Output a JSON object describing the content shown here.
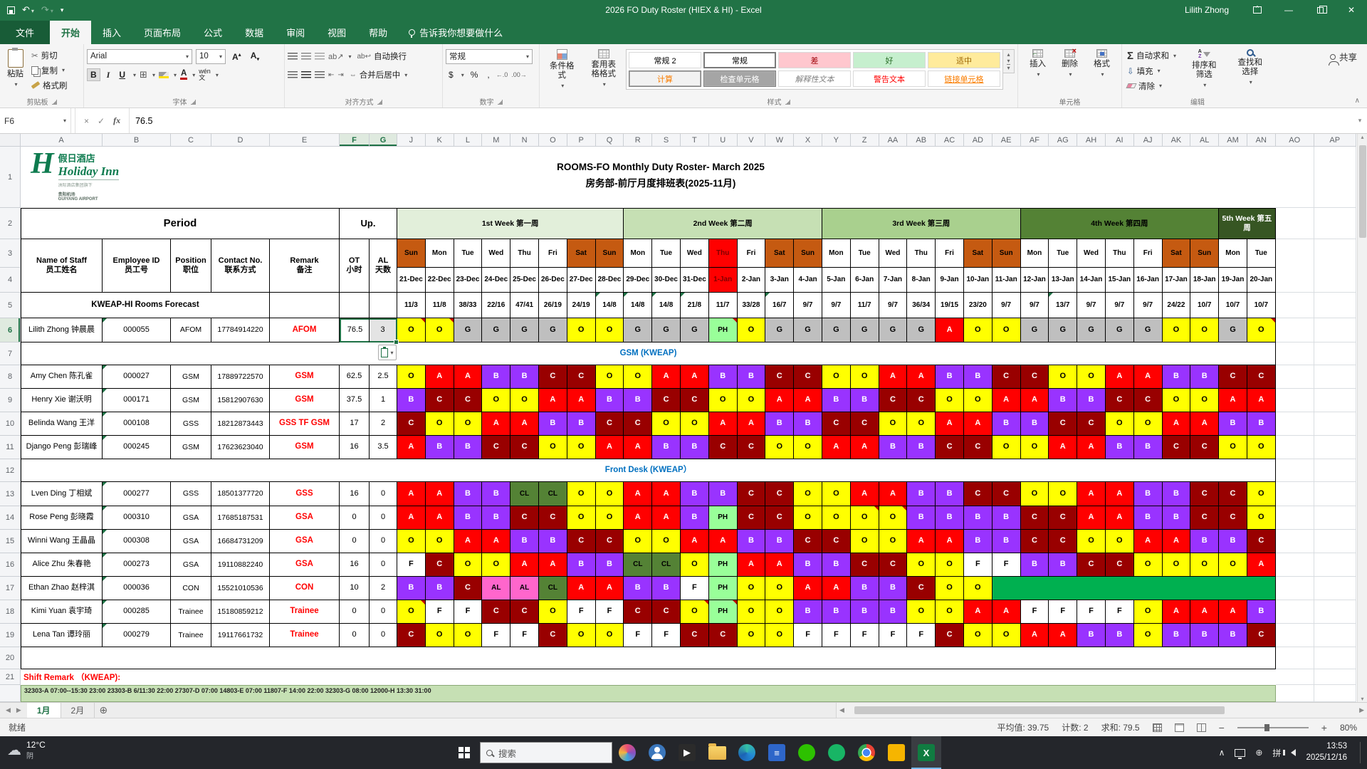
{
  "titlebar": {
    "title": "2026 FO Duty Roster (HIEX & HI)  -  Excel",
    "user": "Lilith Zhong"
  },
  "ribbon": {
    "tabs": [
      {
        "label": "文件",
        "active": false,
        "file": true
      },
      {
        "label": "开始",
        "active": true
      },
      {
        "label": "插入",
        "active": false
      },
      {
        "label": "页面布局",
        "active": false
      },
      {
        "label": "公式",
        "active": false
      },
      {
        "label": "数据",
        "active": false
      },
      {
        "label": "审阅",
        "active": false
      },
      {
        "label": "视图",
        "active": false
      },
      {
        "label": "帮助",
        "active": false
      }
    ],
    "tell_me": "告诉我你想要做什么",
    "share": "共享",
    "clipboard": {
      "label": "剪贴板",
      "paste": "粘贴",
      "cut": "剪切",
      "copy": "复制",
      "painter": "格式刷"
    },
    "font": {
      "label": "字体",
      "family": "Arial",
      "size": "10",
      "phonetic": "文"
    },
    "alignment": {
      "label": "对齐方式",
      "wrap": "自动换行",
      "merge": "合并后居中"
    },
    "number": {
      "label": "数字",
      "format": "常规"
    },
    "styles": {
      "label": "样式",
      "conditional": "条件格式",
      "table_format": "套用表格格式",
      "gallery": [
        {
          "label": "常规 2",
          "bg": "#FFFFFF",
          "fg": "#000000"
        },
        {
          "label": "常规",
          "bg": "#FFFFFF",
          "fg": "#000000",
          "selected": true
        },
        {
          "label": "差",
          "bg": "#FFC7CE",
          "fg": "#9C0006"
        },
        {
          "label": "好",
          "bg": "#C6EFCE",
          "fg": "#276B24"
        },
        {
          "label": "适中",
          "bg": "#FFEB9C",
          "fg": "#9C6500"
        },
        {
          "label": "计算",
          "bg": "#F2F2F2",
          "fg": "#FA7D00",
          "boxed": true
        },
        {
          "label": "检查单元格",
          "bg": "#A5A5A5",
          "fg": "#FFFFFF",
          "boxed": true
        },
        {
          "label": "解释性文本",
          "bg": "#FFFFFF",
          "fg": "#808080",
          "italic": true
        },
        {
          "label": "警告文本",
          "bg": "#FFFFFF",
          "fg": "#FF0000"
        },
        {
          "label": "链接单元格",
          "bg": "#FFFFFF",
          "fg": "#FA7D00",
          "underline": true
        }
      ]
    },
    "cells": {
      "label": "单元格",
      "insert": "插入",
      "del": "删除",
      "format": "格式"
    },
    "editing": {
      "label": "编辑",
      "autosum": "自动求和",
      "fill": "填充",
      "clear": "清除",
      "sort": "排序和筛选",
      "find": "查找和选择"
    }
  },
  "formula_bar": {
    "name_box": "F6",
    "value": "76.5"
  },
  "sheet": {
    "columns": [
      "A",
      "B",
      "C",
      "D",
      "E",
      "F",
      "G",
      "J",
      "K",
      "L",
      "M",
      "N",
      "O",
      "P",
      "Q",
      "R",
      "S",
      "T",
      "U",
      "V",
      "W",
      "X",
      "Y",
      "Z",
      "AA",
      "AB",
      "AC",
      "AD",
      "AE",
      "AF",
      "AG",
      "AH",
      "AI",
      "AJ",
      "AK",
      "AL",
      "AM",
      "AN",
      "AO",
      "AP"
    ],
    "selected_columns": [
      "F",
      "G"
    ],
    "selected_row": 6,
    "active_cell": "F6",
    "logo": {
      "brand_cn": "假日酒店",
      "brand_en": "Holiday Inn",
      "sub1": "洲际酒店集团旗下",
      "sub2": "贵阳机场",
      "sub3": "GUIYANG AIRPORT"
    },
    "title_line1": "ROOMS-FO Monthly Duty Roster- March 2025",
    "title_line2": "房务部-前厅月度排班表(2025-11月)",
    "period_label": "Period",
    "up_label": "Up.",
    "left_headers": [
      [
        "Name of Staff",
        "员工姓名"
      ],
      [
        "Employee ID",
        "员工号"
      ],
      [
        "Position",
        "职位"
      ],
      [
        "Contact No.",
        "联系方式"
      ],
      [
        "Remark",
        "备注"
      ],
      [
        "OT",
        "小时"
      ],
      [
        "AL",
        "天数"
      ]
    ],
    "weeks": [
      {
        "label": "1st Week 第一周",
        "days": 8,
        "bg": "#E2EFDA",
        "fg": "#000000"
      },
      {
        "label": "2nd Week 第二周",
        "days": 7,
        "bg": "#C6E0B4",
        "fg": "#000000"
      },
      {
        "label": "3rd Week 第三周",
        "days": 7,
        "bg": "#A9D08E",
        "fg": "#000000"
      },
      {
        "label": "4th Week 第四周",
        "days": 7,
        "bg": "#548235",
        "fg": "#000000"
      },
      {
        "label": "5th Week 第五周",
        "days": 2,
        "bg": "#375623",
        "fg": "#FFFFFF"
      }
    ],
    "days": [
      "Sun",
      "Mon",
      "Tue",
      "Wed",
      "Thu",
      "Fri",
      "Sat",
      "Sun",
      "Mon",
      "Tue",
      "Wed",
      "Thu",
      "Fri",
      "Sat",
      "Sun",
      "Mon",
      "Tue",
      "Wed",
      "Thu",
      "Fri",
      "Sat",
      "Sun",
      "Mon",
      "Tue",
      "Wed",
      "Thu",
      "Fri",
      "Sat",
      "Sun",
      "Mon",
      "Tue"
    ],
    "dates": [
      "21-Dec",
      "22-Dec",
      "23-Dec",
      "24-Dec",
      "25-Dec",
      "26-Dec",
      "27-Dec",
      "28-Dec",
      "29-Dec",
      "30-Dec",
      "31-Dec",
      "1-Jan",
      "2-Jan",
      "3-Jan",
      "4-Jan",
      "5-Jan",
      "6-Jan",
      "7-Jan",
      "8-Jan",
      "9-Jan",
      "10-Jan",
      "11-Jan",
      "12-Jan",
      "13-Jan",
      "14-Jan",
      "15-Jan",
      "16-Jan",
      "17-Jan",
      "18-Jan",
      "19-Jan",
      "20-Jan"
    ],
    "weekend_cols": [
      0,
      6,
      7,
      13,
      14,
      20,
      21,
      27,
      28
    ],
    "holiday_cols": [
      11
    ],
    "weekend_bg": "#C55A11",
    "holiday_bg": "#FF0000",
    "forecast_label": "KWEAP-HI Rooms Forecast",
    "forecast": [
      "11/3",
      "11/8",
      "38/33",
      "22/16",
      "47/41",
      "26/19",
      "24/19",
      "14/8",
      "14/8",
      "14/8",
      "21/8",
      "11/7",
      "33/28",
      "16/7",
      "9/7",
      "9/7",
      "11/7",
      "9/7",
      "36/34",
      "19/15",
      "23/20",
      "9/7",
      "9/7",
      "13/7",
      "9/7",
      "9/7",
      "9/7",
      "24/22",
      "10/7",
      "10/7",
      "10/7"
    ],
    "forecast_note_cols": [
      7,
      8,
      9,
      10,
      13,
      23
    ],
    "section_gsm": "GSM (KWEAP)",
    "section_fd": "Front Desk (KWEAP）",
    "shift_colors": {
      "O": [
        "#FFFF00",
        "#000000"
      ],
      "A": [
        "#FF0000",
        "#FFFFFF"
      ],
      "B": [
        "#9933FF",
        "#FFFFFF"
      ],
      "C": [
        "#990000",
        "#FFFFFF"
      ],
      "G": [
        "#BFBFBF",
        "#000000"
      ],
      "PH": [
        "#99FF99",
        "#000000"
      ],
      "CL": [
        "#548235",
        "#000000"
      ],
      "AL": [
        "#FF66CC",
        "#000000"
      ],
      "F": [
        "#FFFFFF",
        "#000000"
      ],
      "GRN": [
        "#00B050",
        "#00B050"
      ]
    },
    "staff": [
      {
        "row": 6,
        "name": "Lilith Zhong 钟晨晨",
        "id": "000055",
        "pos": "AFOM",
        "contact": "17784914220",
        "remark": "AFOM",
        "ot": "76.5",
        "al": "3",
        "selected": true,
        "note_cols": [
          0,
          1,
          11,
          30
        ],
        "shifts": [
          "O",
          "O",
          "G",
          "G",
          "G",
          "G",
          "O",
          "O",
          "G",
          "G",
          "G",
          "PH",
          "O",
          "G",
          "G",
          "G",
          "G",
          "G",
          "G",
          "A",
          "O",
          "O",
          "G",
          "G",
          "G",
          "G",
          "G",
          "O",
          "O",
          "G",
          "O"
        ]
      },
      {
        "row": 8,
        "name": "Amy Chen 陈孔雀",
        "id": "000027",
        "pos": "GSM",
        "contact": "17889722570",
        "remark": "GSM",
        "ot": "62.5",
        "al": "2.5",
        "note_cols": [],
        "shifts": [
          "O",
          "A",
          "A",
          "B",
          "B",
          "C",
          "C",
          "O",
          "O",
          "A",
          "A",
          "B",
          "B",
          "C",
          "C",
          "O",
          "O",
          "A",
          "A",
          "B",
          "B",
          "C",
          "C",
          "O",
          "O",
          "A",
          "A",
          "B",
          "B",
          "C",
          "C"
        ]
      },
      {
        "row": 9,
        "name": "Henry Xie 谢沃明",
        "id": "000171",
        "pos": "GSM",
        "contact": "15812907630",
        "remark": "GSM",
        "ot": "37.5",
        "al": "1",
        "note_cols": [],
        "shifts": [
          "B",
          "C",
          "C",
          "O",
          "O",
          "A",
          "A",
          "B",
          "B",
          "C",
          "C",
          "O",
          "O",
          "A",
          "A",
          "B",
          "B",
          "C",
          "C",
          "O",
          "O",
          "A",
          "A",
          "B",
          "B",
          "C",
          "C",
          "O",
          "O",
          "A",
          "A"
        ]
      },
      {
        "row": 10,
        "name": "Belinda Wang 王洋",
        "id": "000108",
        "pos": "GSS",
        "contact": "18212873443",
        "remark": "GSS TF GSM",
        "ot": "17",
        "al": "2",
        "note_cols": [],
        "shifts": [
          "C",
          "O",
          "O",
          "A",
          "A",
          "B",
          "B",
          "C",
          "C",
          "O",
          "O",
          "A",
          "A",
          "B",
          "B",
          "C",
          "C",
          "O",
          "O",
          "A",
          "A",
          "B",
          "B",
          "C",
          "C",
          "O",
          "O",
          "A",
          "A",
          "B",
          "B"
        ]
      },
      {
        "row": 11,
        "name": "Django Peng 彭瑞峰",
        "id": "000245",
        "pos": "GSM",
        "contact": "17623623040",
        "remark": "GSM",
        "ot": "16",
        "al": "3.5",
        "note_cols": [],
        "shifts": [
          "A",
          "B",
          "B",
          "C",
          "C",
          "O",
          "O",
          "A",
          "A",
          "B",
          "B",
          "C",
          "C",
          "O",
          "O",
          "A",
          "A",
          "B",
          "B",
          "C",
          "C",
          "O",
          "O",
          "A",
          "A",
          "B",
          "B",
          "C",
          "C",
          "O",
          "O"
        ]
      },
      {
        "row": 13,
        "name": "Lven Ding 丁相斌",
        "id": "000277",
        "pos": "GSS",
        "contact": "18501377720",
        "remark": "GSS",
        "ot": "16",
        "al": "0",
        "note_cols": [],
        "shifts": [
          "A",
          "A",
          "B",
          "B",
          "CL",
          "CL",
          "O",
          "O",
          "A",
          "A",
          "B",
          "B",
          "C",
          "C",
          "O",
          "O",
          "A",
          "A",
          "B",
          "B",
          "C",
          "C",
          "O",
          "O",
          "A",
          "A",
          "B",
          "B",
          "C",
          "C",
          "O"
        ]
      },
      {
        "row": 14,
        "name": "Rose Peng 彭晓霞",
        "id": "000310",
        "pos": "GSA",
        "contact": "17685187531",
        "remark": "GSA",
        "ot": "0",
        "al": "0",
        "note_cols": [
          16,
          17
        ],
        "shifts": [
          "A",
          "A",
          "B",
          "B",
          "C",
          "C",
          "O",
          "O",
          "A",
          "A",
          "B",
          "PH",
          "C",
          "C",
          "O",
          "O",
          "O",
          "O",
          "B",
          "B",
          "B",
          "B",
          "C",
          "C",
          "A",
          "A",
          "B",
          "B",
          "C",
          "C",
          "O"
        ]
      },
      {
        "row": 15,
        "name": "Winni Wang 王晶晶",
        "id": "000308",
        "pos": "GSA",
        "contact": "16684731209",
        "remark": "GSA",
        "ot": "0",
        "al": "0",
        "note_cols": [],
        "shifts": [
          "O",
          "O",
          "A",
          "A",
          "B",
          "B",
          "C",
          "C",
          "O",
          "O",
          "A",
          "A",
          "B",
          "B",
          "C",
          "C",
          "O",
          "O",
          "A",
          "A",
          "B",
          "B",
          "C",
          "C",
          "O",
          "O",
          "A",
          "A",
          "B",
          "B",
          "C"
        ]
      },
      {
        "row": 16,
        "name": "Alice Zhu 朱春艳",
        "id": "000273",
        "pos": "GSA",
        "contact": "19110882240",
        "remark": "GSA",
        "ot": "16",
        "al": "0",
        "note_cols": [],
        "shifts": [
          "F",
          "C",
          "O",
          "O",
          "A",
          "A",
          "B",
          "B",
          "CL",
          "CL",
          "O",
          "PH",
          "A",
          "A",
          "B",
          "B",
          "C",
          "C",
          "O",
          "O",
          "F",
          "F",
          "B",
          "B",
          "C",
          "C",
          "O",
          "O",
          "O",
          "O",
          "A"
        ]
      },
      {
        "row": 17,
        "name": "Ethan Zhao 赵梓淇",
        "id": "000036",
        "pos": "CON",
        "contact": "15521010536",
        "remark": "CON",
        "ot": "10",
        "al": "2",
        "note_cols": [],
        "shifts": [
          "B",
          "B",
          "C",
          "AL",
          "AL",
          "CL",
          "A",
          "A",
          "B",
          "B",
          "F",
          "PH",
          "O",
          "O",
          "A",
          "A",
          "B",
          "B",
          "C",
          "O",
          "O",
          "GRN",
          "GRN",
          "GRN",
          "GRN",
          "GRN",
          "GRN",
          "GRN",
          "GRN",
          "GRN",
          "GRN"
        ]
      },
      {
        "row": 18,
        "name": "Kimi Yuan 袁宇琦",
        "id": "000285",
        "pos": "Trainee",
        "contact": "15180859212",
        "remark": "Trainee",
        "ot": "0",
        "al": "0",
        "note_cols": [
          0,
          10,
          11
        ],
        "shifts": [
          "O",
          "F",
          "F",
          "C",
          "C",
          "O",
          "F",
          "F",
          "C",
          "C",
          "O",
          "PH",
          "O",
          "O",
          "B",
          "B",
          "B",
          "B",
          "O",
          "O",
          "A",
          "A",
          "F",
          "F",
          "F",
          "F",
          "O",
          "A",
          "A",
          "A",
          "B"
        ]
      },
      {
        "row": 19,
        "name": "Lena Tan 谭玲丽",
        "id": "000279",
        "pos": "Trainee",
        "contact": "19117661732",
        "remark": "Trainee",
        "ot": "0",
        "al": "0",
        "note_cols": [],
        "shifts": [
          "C",
          "O",
          "O",
          "F",
          "F",
          "C",
          "O",
          "O",
          "F",
          "F",
          "C",
          "C",
          "O",
          "O",
          "F",
          "F",
          "F",
          "F",
          "F",
          "C",
          "O",
          "O",
          "A",
          "A",
          "B",
          "B",
          "O",
          "B",
          "B",
          "B",
          "C"
        ]
      }
    ],
    "shift_remark_label": "Shift Remark （KWEAP):",
    "shift_codes": "32303-A 07:00--15:30    23:00    23303-B 6/11:30    22:00    27307-D 07:00    14803-E 07:00    11807-F 14:00    22:00    32303-G 08:00    12000-H 13:30    31:00"
  },
  "sheet_tabs": [
    {
      "label": "1月",
      "active": true
    },
    {
      "label": "2月",
      "active": false
    }
  ],
  "status_bar": {
    "ready": "就绪",
    "average": "平均值: 39.75",
    "count": "计数: 2",
    "sum": "求和: 79.5",
    "zoom": "80%"
  },
  "taskbar": {
    "weather_temp": "12°C",
    "weather_desc": "阴",
    "search_placeholder": "搜索",
    "ime": "拼",
    "time": "13:53",
    "date": "2025/12/16",
    "apps": [
      {
        "name": "people-app-icon",
        "shape": "swirl"
      },
      {
        "name": "contacts-app-icon",
        "shape": "person"
      },
      {
        "name": "media-app-icon",
        "shape": "square",
        "color": "#2B2B2B",
        "glyph": "▶"
      },
      {
        "name": "file-explorer-icon",
        "shape": "folder"
      },
      {
        "name": "edge-icon",
        "shape": "edge"
      },
      {
        "name": "app-blue-icon",
        "shape": "square",
        "color": "#2E66C9",
        "glyph": "≡"
      },
      {
        "name": "wechat-icon",
        "shape": "circle",
        "color": "#2DC100",
        "glyph": ""
      },
      {
        "name": "app-green-icon",
        "shape": "circle",
        "color": "#18B565",
        "glyph": ""
      },
      {
        "name": "chrome-icon",
        "shape": "chrome"
      },
      {
        "name": "app-yellow-icon",
        "shape": "square",
        "color": "#F6B500",
        "glyph": ""
      },
      {
        "name": "excel-icon",
        "shape": "square",
        "color": "#107C41",
        "glyph": "X",
        "active": true
      }
    ]
  }
}
